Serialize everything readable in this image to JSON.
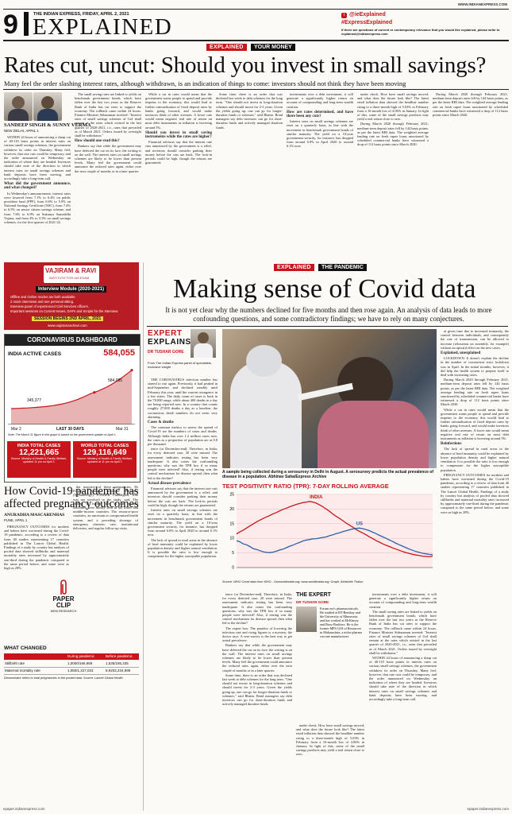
{
  "masthead": {
    "url": "WWW.INDIANEXPRESS.COM",
    "page_number": "9",
    "paper": "THE INDIAN EXPRESS, FRIDAY, APRIL 2, 2021",
    "brand": "EXPLAINED",
    "twitter_handle": "@ieExplained",
    "hashtag": "#ExpressExplained",
    "note": "If there are questions of current or contemporary relevance that you would like explained, please write to explained@indianexpress.com"
  },
  "story1": {
    "tag_left": "EXPLAINED",
    "tag_right": "YOUR MONEY",
    "headline": "Rates cut, uncut: Should you invest in small savings?",
    "deck": "Many feel the order slashing interest rates, although withdrawn, is an indication of things to come: investors should not think they have been moving",
    "byline": "SANDEEP SINGH & SUNNY VERMA",
    "place": "NEW DELHI, APRIL 1",
    "col1": "WITHIN 24 hours of announcing a sharp cut of 40-110 basis points in interest rates on various small savings schemes, the government withdrew its order on Thursday. Many feel, however, that rate cuts could be temporary, and the order announced on Wednesday an indication of where they are headed. Investors should take note of the direction in which interest rates on small savings schemes and bank deposits have been moving, and accordingly take a long-term call.",
    "col1_sub": "What did the government announce, and what changed?",
    "col1b": "In Wednesday's announcement, interest rates were lowered from 7.1% to 6.4% on public provident fund (PPF), from 6.8% to 5.9% on National Savings Certificate (NSC), from 7.4% to 6.5% on senior citizen savings scheme, and from 7.6% to 6.9% on Sukanya Samriddhi Yojana, and from 4% to 3.5% on small savings schemes, for the first quarter of 2021-22.",
    "col2": "The small saving rates are linked to yields on benchmark government bonds, which have fallen over the last two years as the Reserve Bank of India has cut rates to support the economy. The rollback came within 24 hours. Finance Minister Sitharaman tweeted: \"Interest rates of small savings schemes of GoI shall remain at the rates which existed in the last quarter of 2020-2021, i.e., rates that prevailed as of March 2021. Orders issued by oversight shall be withdrawn.\"",
    "col2_sub": "How should one read this?",
    "col2b": "Bankers say that while the government may have deferred the cut on its face, the writing is on the wall. The interest rates on small savings schemes are likely to be lower than present levels. Many feel the government could announce the reduced rates again, either over the next couple of months or in a later quarter.",
    "col3": "While a cut in rates would mean that the government wants people to spend and provide impetus to the economy, this would lead to further rationalisation of fixed deposit rates by banks going forward, and would make investors think of other avenues. A lower rate would mean negative real rate of return on most debt instruments as inflation is hovering around 5%.",
    "col3_sub": "Should you invest in small saving instruments while the rates are higher?",
    "col3b": "Financial advisors say that the interest rate cuts announced by the government is a relief, and investors should consider parking their money before the cuts are back. The lock-in periods could be high, though the returns are guaranteed.",
    "col4": "Some time, there is an order that was declined last week to debt schemes for the long term. \"One should not invest in long-duration schemes and should invest for 2-3 years. Given the yields going up, one can go for longer-duration funds or schemes,\" said Bhatia. Bond managers say debt investors can go for short-duration funds and actively managed duration funds.",
    "col5": "investments over a debt investment, it will generate a significantly higher return on account of compounding and long-term wealth creation.",
    "col5_sub": "How are rates determined, and have there been any cuts?",
    "col5b": "Interest rates on small savings schemes are reset on a quarterly basis, in line with the movement in benchmark government bonds of similar maturity. The yield on a 10-year government security, for instance, has dropped from around 6.8% in April 2020 to around 6.1% now.",
    "col6": "under check. How have small savings moved, and what does the future look like? The latest retail inflation data showed the headline number rising to a three-month high of 5.03% in February from a 16-month low of 4.06% in January. In light of this, some of the small savings products may yield a real return close to zero.",
    "col6b": "During March 2020 through February 2021, medium-term deposit rates fell by 144 basis points, as per the latest RBI data. The weighted average lending rate on fresh rupee loans sanctioned by scheduled commercial banks have witnessed a drop of 112 basis points since March 2020."
  },
  "ad": {
    "brand": "VAJIRAM & RAVI",
    "sub": "INSTITUTE FOR IAS EXAM",
    "program": "Interview Module (2020-2021)",
    "points": [
      "Offline and Online modes are both available.",
      "2 mock interviews and one personal sitting.",
      "Interview panel of experienced Civil Services officers.",
      "Important sessions on Current Issues, DAFs and Scripts for the Interview."
    ],
    "footer": "SESSION BEGINS 2ND APRIL, 2021",
    "site": "www.vajiramandravi.com"
  },
  "dashboard": {
    "title": "CORONAVIRUS DASHBOARD",
    "chart_title": "INDIA ACTIVE CASES",
    "current_value": "584,055",
    "annotation_mid": "584,055",
    "annotation_low": "345,377",
    "x_start": "Mar 2",
    "x_end": "Mar 31",
    "x_mid": "LAST 30 DAYS",
    "note": "Note: The March 31 figure in this graph is based on the government update on April 1",
    "india_label": "INDIA TOTAL CASES",
    "india_value": "12,221,665",
    "india_source": "Source: Ministry of Health & Family Welfare, updated 11 pm on April 1",
    "world_label": "WORLD TOTAL CASES",
    "world_value": "129,116,649",
    "world_source": "Source: Ministry of Health & Family Welfare, updated at 11 pm on April 1"
  },
  "chart_data": [
    {
      "type": "area",
      "title": "INDIA ACTIVE CASES",
      "xlabel": "LAST 30 DAYS",
      "x_range": [
        "Mar 2",
        "Mar 31"
      ],
      "values": [
        170000,
        172000,
        174000,
        176000,
        178000,
        181000,
        184000,
        188000,
        192000,
        197000,
        203000,
        210000,
        218000,
        228000,
        240000,
        254000,
        270000,
        288000,
        308000,
        330000,
        345377,
        362000,
        382000,
        403000,
        428000,
        455000,
        484000,
        516000,
        550000,
        584055
      ],
      "grid": false
    },
    {
      "type": "line",
      "title": "TEST POSITIVITY RATIO (TPR): 7-DAY ROLLING AVERAGE",
      "series": [
        {
          "name": "INDIA",
          "values": [
            11.5,
            12.2,
            12.8,
            13.5,
            14.2,
            14.9,
            15.6,
            16.2,
            16.8,
            17.3,
            17.8,
            18.4,
            18.8,
            19.4,
            19.9,
            20.3,
            20.8,
            21.2,
            21.6,
            21.9,
            22.2,
            22.4,
            22.6,
            22.4,
            22.0,
            21.4,
            20.8,
            20.0,
            19.2,
            18.3,
            17.5,
            16.8,
            16.0,
            15.2,
            14.5,
            13.8,
            13.0,
            12.4,
            11.8,
            11.2,
            10.5,
            9.9,
            9.2,
            8.7,
            8.1,
            7.6,
            7.2,
            6.7,
            6.3,
            5.9,
            5.5,
            5.1,
            4.8,
            4.5,
            4.3,
            4.1,
            3.9,
            3.8,
            3.7,
            3.9
          ]
        },
        {
          "name": "US",
          "values": [
            9.2,
            8.8,
            8.1,
            7.8,
            7.2,
            6.5,
            6.2,
            5.8,
            5.4,
            5.2,
            5.1,
            5.3,
            5.6,
            6.0,
            6.3,
            6.8,
            7.3,
            7.7,
            8.2,
            8.6,
            9.1,
            9.4,
            9.6,
            9.8,
            9.9,
            10.1,
            10.3,
            10.5,
            10.9,
            11.2,
            11.6,
            11.9,
            12.3,
            12.6,
            12.9,
            13.2,
            13.4,
            13.5,
            13.3,
            13.0,
            12.6,
            12.1,
            11.6,
            11.0,
            10.5,
            10.0,
            9.4,
            8.9,
            8.3,
            7.8,
            7.3,
            6.8,
            6.3,
            5.9,
            5.5,
            5.2,
            4.9,
            4.7,
            4.5,
            4.4
          ]
        }
      ],
      "ylim": [
        0,
        25
      ],
      "legend": "inline"
    }
  ],
  "story2": {
    "headline": "How Covid-19 pandemic has affected pregnancy outcomes",
    "byline": "ANURADHA MASCARENHAS",
    "place": "PUNE, APRIL 1",
    "col1": "PREGNANCY OUTCOMES for mothers and babies have worsened during the Covid-19 pandemic, according to a review of data from 40 studies representing 17 countries published in The Lancet Global Health. Findings of a study by country but analysis of pooled data showed stillbirths and maternal mortality rates increased by approximately one-third during the pandemic compared to the same period before, and some were as high as 28%.",
    "col2": "the majority of these pregnancies. Dr Pragnya Kumar, Assistant Professor (Neonatology), PGIMER Chandigarh, who was not involved in the study, said: The finding of higher rates of the adverse outcomes were mostly seen in the lower and middle-income countries. The resource-poor countries, an uncertain or compromised health system, and a preceding shortage of emergency obstetric care, institutional deliveries, and regular follow-up visits.",
    "clip_title": "PAPER CLIP",
    "clip_sub": "NEW RESEARCH",
    "box_title": "WHAT CHANGED",
    "box_headers": [
      "",
      "During pandemic",
      "Before pandemic"
    ],
    "box_rows": [
      [
        "Stillbirth rate",
        "1,0000/166,969",
        "1,535/185,335"
      ],
      [
        "Maternal mortality rate",
        "1,050/1,227,023",
        "8,9202,234,899"
      ]
    ],
    "box_note": "Denominator refers to total pregnancies in the pooled data. Source: Lancet Global Health"
  },
  "story3": {
    "tag_left": "EXPLAINED",
    "tag_right": "THE PANDEMIC",
    "headline": "Making sense of Covid data",
    "deck": "It is not yet clear why the numbers declined for five months and then rose again. An analysis of data leads to more confounding questions, and some contradictory findings; we have to rely on many conjectures.",
    "expert_label": "EXPERT",
    "explains_label": "EXPLAINS",
    "expert_name": "DR TUSHAR GORE",
    "expert_note": "From The Indian Express panel of specialists, exclusive insight",
    "photo_caption": "A sample being collected during a serosurvey in Delhi in August. A serosurvey predicts the actual prevalence of disease in a population. Abhinav Saha/Express Archive",
    "chart_source": "Source: WHO Covid data from WHO - Ourworldindata.org; www.worldindata.org; Graph: Abhishek Thakur",
    "col1": "THE CORONAVIRUS infection number has started to rise again. Previously, it had peaked in mid-September and declined steadily until February this year, until the current resurgence in a few states. The daily count of cases is back in the 70,000 range, while about 400 deaths in a day are being reported now. In a country that counts roughly 27,000 deaths a day as a baseline, the coronavirus death numbers do not seem very alarming.",
    "col1_sub": "Cases & deaths",
    "col1b": "The common metrics to assess the spread of Covid-19 are the numbers of cases and deaths. Although India has over 1.2 million cases now, the cases as a proportion of population are at 0.8 per thousand.",
    "col2": "tence (or December-end). Therefore, in India, for every detected case, 20 were missed. The assessment indicates testing has been very inadequate. It also raises the confounding questions: why was the TPR low if so many people were infected? Also, if testing was the control mechanism for disease spread, then what led to the decline?",
    "col2_sub": "Actual disease prevalence",
    "col3": "The expert box: The paradox of lowering the infection rate and rising figures is a mystery, the doctor says. A sero-survey is the best way to get actual prevalence.",
    "expert2_title": "THE EXPERT",
    "expert2_name": "DR TUSHAR GORE",
    "expert2_bio": "Forum era's pharmaceuticals. He studied at BT-Bombay and the University of Minnesota, and has worked at McKinsey and Booz Brothers. He is the former MPS GOI of Resources in Maharashtra, a niche pharma vaccine manufacturer.",
    "col4": "at given time due to increased immunity, the control between individuals, and consequently the rate of transmission, can be allowed to increase (relaxation on assembly, for example) without an upward effect on the new cases.",
    "col4_sub": "Explained, unexplained",
    "col4b": "LOCKDOWN: It doesn't explain the decline in the number of coronavirus strict lockdown was in April. In the initial months, however, it did help the health system to prepare itself to deal with increasing cases.",
    "col4_sub2": "Reinfections",
    "col4c": "The lack of spread in rural areas in the absence of herd immunity could be explained by lower population density and higher natural ventilation. It is possible the ratio is low enough to compensate for the higher susceptible population."
  },
  "footer": {
    "left": "epaper.indianexpress.com",
    "right": "epaper.indianexpress.com"
  }
}
